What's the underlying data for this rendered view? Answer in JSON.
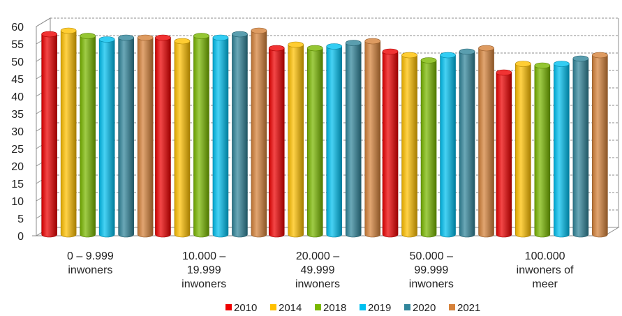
{
  "chart_data": {
    "type": "bar",
    "categories": [
      [
        "0 – 9.999",
        "inwoners"
      ],
      [
        "10.000 –",
        "19.999",
        "inwoners"
      ],
      [
        "20.000 –",
        "49.999",
        "inwoners"
      ],
      [
        "50.000 –",
        "99.999",
        "inwoners"
      ],
      [
        "100.000",
        "inwoners of",
        "meer"
      ]
    ],
    "series": [
      {
        "name": "2010",
        "color": "#ee0000",
        "values": [
          57,
          56,
          53,
          52,
          46
        ]
      },
      {
        "name": "2014",
        "color": "#ffc000",
        "values": [
          58,
          55,
          54,
          51,
          48.5
        ]
      },
      {
        "name": "2018",
        "color": "#7ab800",
        "values": [
          56.5,
          56.5,
          53,
          49.5,
          48
        ]
      },
      {
        "name": "2019",
        "color": "#00c0f0",
        "values": [
          55.5,
          56,
          53.5,
          51,
          48.5
        ]
      },
      {
        "name": "2020",
        "color": "#31869b",
        "values": [
          56,
          57,
          54.5,
          52,
          50
        ]
      },
      {
        "name": "2021",
        "color": "#d6823a",
        "values": [
          56,
          58,
          55,
          53,
          51
        ]
      }
    ],
    "ylim": [
      0,
      60
    ],
    "yticks": [
      0,
      5,
      10,
      15,
      20,
      25,
      30,
      35,
      40,
      45,
      50,
      55,
      60
    ],
    "grid": true,
    "legend_position": "bottom",
    "style": "3d-clustered-column"
  }
}
